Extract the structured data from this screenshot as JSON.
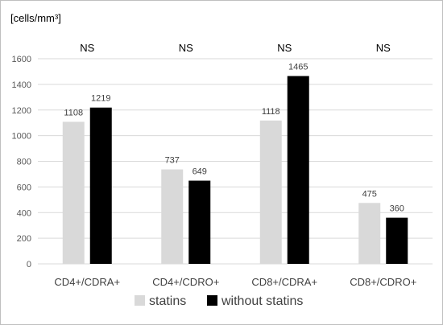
{
  "chart_data": {
    "type": "bar",
    "unit_label": "[cells/mm³]",
    "categories": [
      "CD4+/CDRA+",
      "CD4+/CDRO+",
      "CD8+/CDRA+",
      "CD8+/CDRO+"
    ],
    "significance": [
      "NS",
      "NS",
      "NS",
      "NS"
    ],
    "series": [
      {
        "name": "statins",
        "values": [
          1108,
          737,
          1118,
          475
        ],
        "color": "#d9d9d9"
      },
      {
        "name": "without statins",
        "values": [
          1219,
          649,
          1465,
          360
        ],
        "color": "#000000"
      }
    ],
    "ylim": [
      0,
      1600
    ],
    "yticks": [
      "0",
      "200",
      "400",
      "600",
      "800",
      "1000",
      "1200",
      "1400",
      "1600"
    ],
    "grid": true,
    "legend_position": "bottom"
  }
}
